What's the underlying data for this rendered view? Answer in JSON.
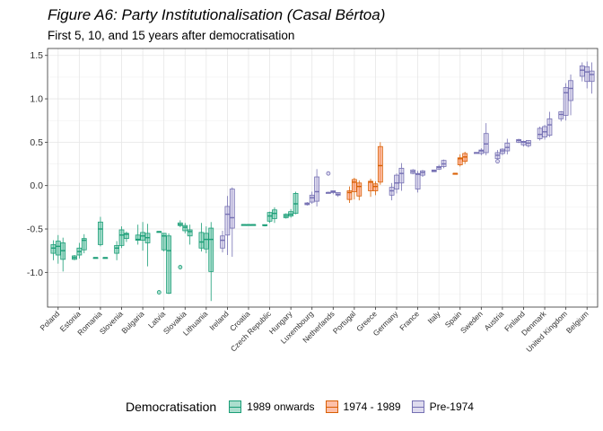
{
  "title": "Figure A6: Party Institutionalisation (Casal Bértoa)",
  "subtitle": "First 5, 10, and 15 years after democratisation",
  "legend": {
    "title": "Democratisation",
    "items": [
      {
        "label": "1989 onwards",
        "fill": "#66c2a5",
        "stroke": "#1b9e77"
      },
      {
        "label": "1974 - 1989",
        "fill": "#fc8d62",
        "stroke": "#d95f02"
      },
      {
        "label": "Pre-1974",
        "fill": "#c3bde0",
        "stroke": "#7570b3"
      }
    ]
  },
  "chart_data": {
    "type": "boxplot",
    "ylim": [
      -1.4,
      1.58
    ],
    "yticks": [
      -1.0,
      -0.5,
      0.0,
      0.5,
      1.0,
      1.5
    ],
    "ytick_labels": [
      "-1.0",
      "-0.5",
      "0.0",
      "0.5",
      "1.0",
      "1.5"
    ],
    "grid": true,
    "legend_position": "bottom",
    "group_colors": {
      "1989": {
        "fill": "#66c2a5",
        "stroke": "#1b9e77"
      },
      "1974": {
        "fill": "#fc8d62",
        "stroke": "#d95f02"
      },
      "pre": {
        "fill": "#c3bde0",
        "stroke": "#7570b3"
      }
    },
    "countries": [
      {
        "name": "Poland",
        "group": "1989",
        "boxes": [
          [
            -0.63,
            -0.68,
            -0.72,
            -0.78,
            -0.86
          ],
          [
            -0.57,
            -0.64,
            -0.7,
            -0.8,
            -0.9
          ],
          [
            -0.6,
            -0.66,
            -0.75,
            -0.85,
            -0.99
          ]
        ],
        "outliers": []
      },
      {
        "name": "Estonia",
        "group": "1989",
        "boxes": [
          [
            -0.8,
            -0.81,
            -0.83,
            -0.85,
            -0.86
          ],
          [
            -0.66,
            -0.72,
            -0.76,
            -0.8,
            -0.84
          ],
          [
            -0.56,
            -0.61,
            -0.63,
            -0.74,
            -0.78
          ]
        ],
        "outliers": []
      },
      {
        "name": "Romania",
        "group": "1989",
        "boxes": [
          [
            -0.83,
            -0.83,
            -0.83,
            -0.83,
            -0.83
          ],
          [
            -0.36,
            -0.42,
            -0.5,
            -0.68,
            -0.7
          ],
          [
            -0.83,
            -0.83,
            -0.83,
            -0.83,
            -0.83
          ]
        ],
        "outliers": []
      },
      {
        "name": "Slovenia",
        "group": "1989",
        "boxes": [
          [
            -0.64,
            -0.69,
            -0.72,
            -0.78,
            -0.86
          ],
          [
            -0.47,
            -0.51,
            -0.57,
            -0.69,
            -0.72
          ],
          [
            -0.53,
            -0.55,
            -0.56,
            -0.61,
            -0.65
          ]
        ],
        "outliers": []
      },
      {
        "name": "Bulgaria",
        "group": "1989",
        "boxes": [
          [
            -0.45,
            -0.57,
            -0.62,
            -0.63,
            -0.68
          ],
          [
            -0.42,
            -0.54,
            -0.58,
            -0.63,
            -0.75
          ],
          [
            -0.44,
            -0.55,
            -0.6,
            -0.66,
            -0.93
          ]
        ],
        "outliers": []
      },
      {
        "name": "Latvia",
        "group": "1989",
        "boxes": [
          [
            -0.53,
            -0.53,
            -0.53,
            -0.53,
            -0.54
          ],
          [
            -0.55,
            -0.55,
            -0.58,
            -0.74,
            -0.76
          ],
          [
            -0.55,
            -0.58,
            -0.75,
            -1.24,
            -1.25
          ]
        ],
        "outliers": [
          -1.23
        ]
      },
      {
        "name": "Slovakia",
        "group": "1989",
        "boxes": [
          [
            -0.4,
            -0.43,
            -0.45,
            -0.46,
            -0.48
          ],
          [
            -0.43,
            -0.46,
            -0.48,
            -0.52,
            -0.55
          ],
          [
            -0.45,
            -0.51,
            -0.53,
            -0.58,
            -0.68
          ]
        ],
        "outliers": [
          -0.94
        ]
      },
      {
        "name": "Lithuania",
        "group": "1989",
        "boxes": [
          [
            -0.43,
            -0.54,
            -0.65,
            -0.72,
            -0.76
          ],
          [
            -0.47,
            -0.55,
            -0.62,
            -0.73,
            -0.78
          ],
          [
            -0.42,
            -0.49,
            -0.62,
            -0.99,
            -1.33
          ]
        ],
        "outliers": []
      },
      {
        "name": "Ireland",
        "group": "pre",
        "boxes": [
          [
            -0.52,
            -0.58,
            -0.63,
            -0.72,
            -0.77
          ],
          [
            -0.12,
            -0.24,
            -0.33,
            -0.57,
            -0.8
          ],
          [
            -0.02,
            -0.04,
            -0.37,
            -0.49,
            -0.82
          ]
        ],
        "outliers": []
      },
      {
        "name": "Croatia",
        "group": "1989",
        "boxes": [
          [
            -0.45,
            -0.45,
            -0.45,
            -0.45,
            -0.45
          ],
          [
            -0.45,
            -0.45,
            -0.45,
            -0.45,
            -0.45
          ],
          [
            -0.45,
            -0.45,
            -0.45,
            -0.45,
            -0.45
          ]
        ],
        "outliers": []
      },
      {
        "name": "Czech Republic",
        "group": "1989",
        "boxes": [
          [
            -0.45,
            -0.45,
            -0.46,
            -0.46,
            -0.47
          ],
          [
            -0.3,
            -0.31,
            -0.35,
            -0.41,
            -0.43
          ],
          [
            -0.25,
            -0.28,
            -0.32,
            -0.38,
            -0.43
          ]
        ],
        "outliers": []
      },
      {
        "name": "Hungary",
        "group": "1989",
        "boxes": [
          [
            -0.32,
            -0.33,
            -0.35,
            -0.37,
            -0.38
          ],
          [
            -0.27,
            -0.3,
            -0.33,
            -0.35,
            -0.37
          ],
          [
            -0.07,
            -0.09,
            -0.21,
            -0.32,
            -0.33
          ]
        ],
        "outliers": []
      },
      {
        "name": "Luxembourg",
        "group": "pre",
        "boxes": [
          [
            -0.19,
            -0.2,
            -0.21,
            -0.22,
            -0.23
          ],
          [
            -0.07,
            -0.11,
            -0.14,
            -0.19,
            -0.21
          ],
          [
            0.19,
            0.1,
            -0.07,
            -0.18,
            -0.24
          ]
        ],
        "outliers": []
      },
      {
        "name": "Netherlands",
        "group": "pre",
        "boxes": [
          [
            -0.07,
            -0.08,
            -0.08,
            -0.09,
            -0.09
          ],
          [
            -0.06,
            -0.06,
            -0.07,
            -0.08,
            -0.1
          ],
          [
            -0.08,
            -0.08,
            -0.1,
            -0.11,
            -0.13
          ]
        ],
        "outliers": [
          0.14
        ]
      },
      {
        "name": "Portugal",
        "group": "1974",
        "boxes": [
          [
            -0.01,
            -0.06,
            -0.08,
            -0.16,
            -0.2
          ],
          [
            0.09,
            0.07,
            0.04,
            -0.07,
            -0.16
          ],
          [
            0.06,
            0.03,
            -0.01,
            -0.12,
            -0.17
          ]
        ],
        "outliers": []
      },
      {
        "name": "Greece",
        "group": "1974",
        "boxes": [
          [
            0.08,
            0.05,
            0.04,
            -0.06,
            -0.13
          ],
          [
            0.05,
            0.02,
            -0.01,
            -0.06,
            -0.11
          ],
          [
            0.5,
            0.45,
            0.23,
            0.04,
            0.01
          ]
        ],
        "outliers": []
      },
      {
        "name": "Germany",
        "group": "pre",
        "boxes": [
          [
            0.03,
            -0.02,
            -0.06,
            -0.11,
            -0.17
          ],
          [
            0.14,
            0.12,
            0.03,
            -0.04,
            -0.09
          ],
          [
            0.26,
            0.2,
            0.14,
            0.03,
            -0.06
          ]
        ],
        "outliers": []
      },
      {
        "name": "France",
        "group": "pre",
        "boxes": [
          [
            0.19,
            0.18,
            0.16,
            0.14,
            0.13
          ],
          [
            0.17,
            0.14,
            0.13,
            -0.04,
            -0.08
          ],
          [
            0.18,
            0.17,
            0.15,
            0.12,
            0.1
          ]
        ],
        "outliers": []
      },
      {
        "name": "Italy",
        "group": "pre",
        "boxes": [
          [
            0.18,
            0.18,
            0.17,
            0.16,
            0.16
          ],
          [
            0.24,
            0.22,
            0.21,
            0.19,
            0.18
          ],
          [
            0.3,
            0.29,
            0.25,
            0.22,
            0.2
          ]
        ],
        "outliers": []
      },
      {
        "name": "Spain",
        "group": "1974",
        "boxes": [
          [
            0.14,
            0.14,
            0.14,
            0.13,
            0.13
          ],
          [
            0.36,
            0.32,
            0.31,
            0.24,
            0.22
          ],
          [
            0.39,
            0.37,
            0.33,
            0.28,
            0.25
          ]
        ],
        "outliers": []
      },
      {
        "name": "Sweden",
        "group": "pre",
        "boxes": [
          [
            0.38,
            0.38,
            0.38,
            0.38,
            0.38
          ],
          [
            0.43,
            0.41,
            0.4,
            0.37,
            0.35
          ],
          [
            0.72,
            0.6,
            0.48,
            0.38,
            0.35
          ]
        ],
        "outliers": []
      },
      {
        "name": "Austria",
        "group": "pre",
        "boxes": [
          [
            0.41,
            0.38,
            0.35,
            0.31,
            0.3
          ],
          [
            0.43,
            0.42,
            0.4,
            0.37,
            0.35
          ],
          [
            0.54,
            0.49,
            0.44,
            0.4,
            0.36
          ]
        ],
        "outliers": [
          0.28
        ]
      },
      {
        "name": "Finland",
        "group": "pre",
        "boxes": [
          [
            0.54,
            0.53,
            0.52,
            0.5,
            0.49
          ],
          [
            0.52,
            0.51,
            0.5,
            0.47,
            0.45
          ],
          [
            0.52,
            0.52,
            0.49,
            0.46,
            0.44
          ]
        ],
        "outliers": []
      },
      {
        "name": "Denmark",
        "group": "pre",
        "boxes": [
          [
            0.68,
            0.66,
            0.59,
            0.54,
            0.52
          ],
          [
            0.7,
            0.68,
            0.62,
            0.56,
            0.53
          ],
          [
            0.85,
            0.77,
            0.7,
            0.58,
            0.56
          ]
        ],
        "outliers": []
      },
      {
        "name": "United Kingdom",
        "group": "pre",
        "boxes": [
          [
            0.86,
            0.85,
            0.82,
            0.77,
            0.74
          ],
          [
            1.18,
            1.13,
            1.07,
            0.81,
            0.75
          ],
          [
            1.28,
            1.21,
            1.12,
            0.98,
            0.81
          ]
        ],
        "outliers": []
      },
      {
        "name": "Belgium",
        "group": "pre",
        "boxes": [
          [
            1.42,
            1.38,
            1.33,
            1.26,
            1.2
          ],
          [
            1.43,
            1.37,
            1.31,
            1.2,
            1.12
          ],
          [
            1.42,
            1.32,
            1.28,
            1.2,
            1.06
          ]
        ],
        "outliers": []
      }
    ]
  }
}
